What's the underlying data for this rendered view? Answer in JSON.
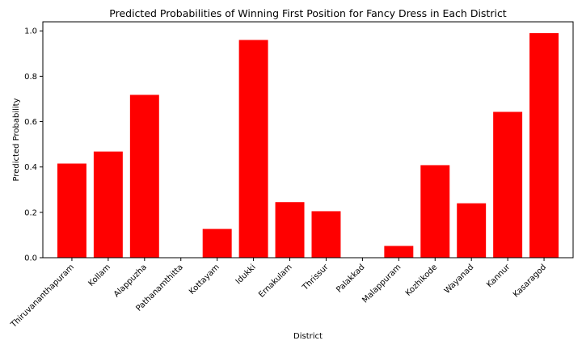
{
  "chart_data": {
    "type": "bar",
    "title": "Predicted Probabilities of Winning First Position for Fancy Dress in Each District",
    "xlabel": "District",
    "ylabel": "Predicted Probability",
    "categories": [
      "Thiruvananthapuram",
      "Kollam",
      "Alappuzha",
      "Pathanamthitta",
      "Kottayam",
      "Idukki",
      "Ernakulam",
      "Thrissur",
      "Palakkad",
      "Malappuram",
      "Kozhikode",
      "Wayanad",
      "Kannur",
      "Kasaragod"
    ],
    "values": [
      0.415,
      0.468,
      0.718,
      0.0,
      0.127,
      0.96,
      0.245,
      0.205,
      0.0,
      0.052,
      0.408,
      0.24,
      0.643,
      0.99
    ],
    "ylim": [
      0,
      1.04
    ],
    "yticks": [
      "0.0",
      "0.2",
      "0.4",
      "0.6",
      "0.8",
      "1.0"
    ],
    "bar_color": "#ff0000",
    "grid": false
  }
}
